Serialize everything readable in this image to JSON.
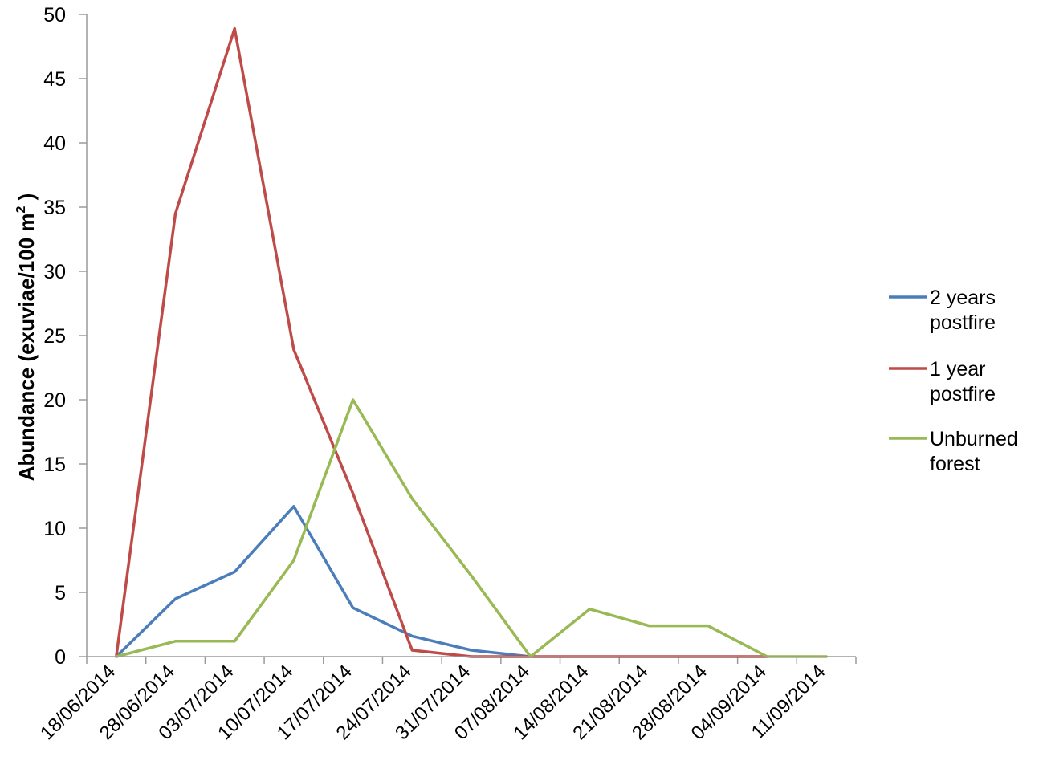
{
  "chart_data": {
    "type": "line",
    "title": "",
    "xlabel": "",
    "ylabel": "Abundance (exuviae/100 m",
    "ylabel_sup": "2",
    "ylabel_close": " )",
    "ylim": [
      0,
      50
    ],
    "yticks": [
      0,
      5,
      10,
      15,
      20,
      25,
      30,
      35,
      40,
      45,
      50
    ],
    "categories": [
      "18/06/2014",
      "28/06/2014",
      "03/07/2014",
      "10/07/2014",
      "17/07/2014",
      "24/07/2014",
      "31/07/2014",
      "07/08/2014",
      "14/08/2014",
      "21/08/2014",
      "28/08/2014",
      "04/09/2014",
      "11/09/2014"
    ],
    "legend_position": "right",
    "grid": false,
    "series": [
      {
        "name": [
          "2 years",
          "postfire"
        ],
        "color": "#4a7ebb",
        "values": [
          0,
          4.5,
          6.6,
          11.7,
          3.8,
          1.6,
          0.5,
          0,
          null,
          null,
          null,
          null,
          null
        ]
      },
      {
        "name": [
          "1 year",
          "postfire"
        ],
        "color": "#be4b48",
        "values": [
          0,
          34.5,
          48.9,
          23.9,
          12.7,
          0.5,
          0,
          0,
          0,
          0,
          0,
          0,
          null
        ]
      },
      {
        "name": [
          "Unburned",
          "forest"
        ],
        "color": "#98b954",
        "values": [
          0,
          1.2,
          1.2,
          7.5,
          20,
          12.3,
          6.3,
          0,
          3.7,
          2.4,
          2.4,
          0,
          0
        ]
      }
    ]
  }
}
